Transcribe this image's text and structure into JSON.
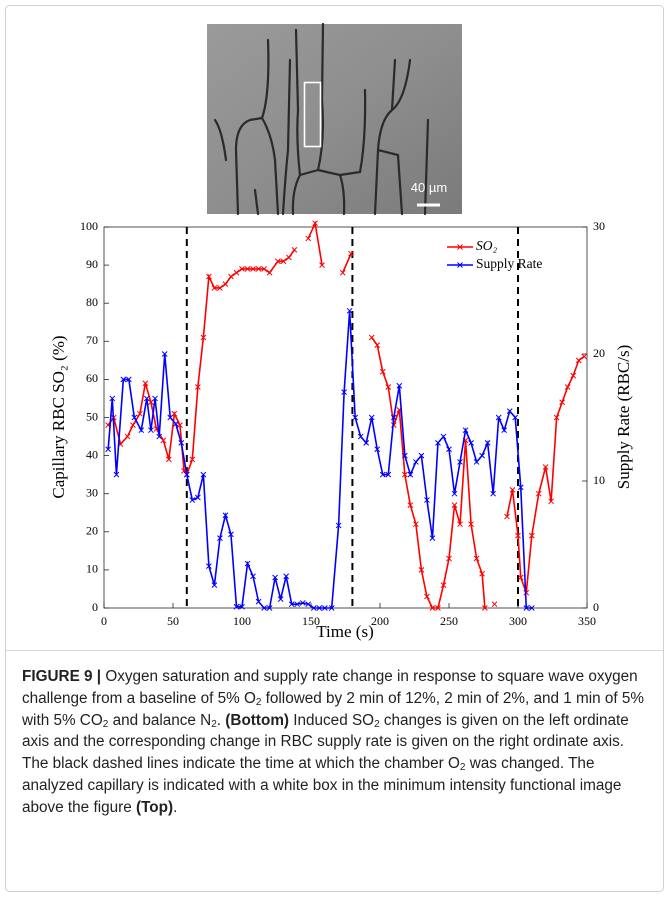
{
  "chart_data": {
    "type": "line",
    "xlabel": "Time (s)",
    "ylabel": "Capillary RBC SO₂ (%)",
    "y2label": "Supply Rate (RBC/s)",
    "xlim": [
      0,
      350
    ],
    "xticks": [
      0,
      50,
      100,
      150,
      200,
      250,
      300,
      350
    ],
    "ylim": [
      0,
      100
    ],
    "yticks": [
      0,
      10,
      20,
      30,
      40,
      50,
      60,
      70,
      80,
      90,
      100
    ],
    "y2lim": [
      0,
      30
    ],
    "y2ticks": [
      0,
      10,
      20,
      30
    ],
    "legend": "upper right",
    "vlines": [
      60,
      180,
      300
    ],
    "series": [
      {
        "name": "SO₂",
        "color": "#ff0000",
        "axis": "y",
        "x": [
          3,
          7,
          12,
          17,
          21,
          26,
          30,
          34,
          38,
          43,
          47,
          51,
          55,
          58,
          60,
          64,
          68,
          72,
          76,
          80,
          84,
          88,
          92,
          96,
          100,
          104,
          108,
          112,
          116,
          120,
          126,
          130,
          134,
          138,
          142,
          148,
          153,
          158,
          163,
          173,
          179,
          188,
          194,
          198,
          202,
          206,
          210,
          214,
          218,
          222,
          226,
          230,
          234,
          238,
          242,
          246,
          250,
          254,
          258,
          262,
          266,
          270,
          274,
          276,
          279,
          283,
          287,
          292,
          296,
          300,
          302,
          306,
          310,
          315,
          320,
          324,
          328,
          332,
          336,
          340,
          344,
          348
        ],
        "values": [
          48,
          50,
          43,
          45,
          48,
          51,
          59,
          54,
          47,
          44,
          39,
          51,
          48,
          36,
          35,
          39,
          58,
          71,
          87,
          84,
          84,
          85,
          87,
          88,
          89,
          89,
          89,
          89,
          89,
          88,
          91,
          91,
          92,
          94,
          null,
          97,
          101,
          90,
          null,
          88,
          93,
          null,
          71,
          69,
          62,
          58,
          48,
          52,
          35,
          27,
          22,
          10,
          3,
          0,
          0,
          6,
          13,
          27,
          22,
          44,
          22,
          13,
          9,
          0,
          null,
          1,
          null,
          24,
          31,
          19,
          8,
          4,
          19,
          30,
          37,
          28,
          50,
          54,
          58,
          61,
          65,
          66
        ]
      },
      {
        "name": "Supply Rate",
        "color": "#0000ff",
        "axis": "y2",
        "x": [
          3,
          6,
          9,
          14,
          18,
          22,
          27,
          31,
          34,
          37,
          40,
          44,
          48,
          52,
          56,
          60,
          64,
          68,
          72,
          76,
          80,
          84,
          88,
          92,
          96,
          100,
          104,
          108,
          112,
          116,
          120,
          124,
          128,
          132,
          136,
          140,
          144,
          148,
          152,
          156,
          160,
          165,
          170,
          174,
          178,
          182,
          186,
          190,
          194,
          198,
          202,
          206,
          210,
          214,
          218,
          222,
          226,
          230,
          234,
          238,
          242,
          246,
          250,
          254,
          258,
          262,
          266,
          270,
          274,
          278,
          282,
          286,
          290,
          294,
          298,
          302,
          306,
          310
        ],
        "values": [
          12.5,
          16.5,
          10.5,
          18,
          18,
          15,
          14,
          16.5,
          14,
          16.5,
          13.5,
          20,
          15,
          14.5,
          13,
          10.5,
          8.5,
          8.7,
          10.5,
          3.3,
          1.8,
          5.5,
          7.3,
          5.8,
          0.1,
          0.1,
          3.5,
          2.5,
          0.5,
          0,
          0,
          2.4,
          0.7,
          2.5,
          0.3,
          0.3,
          0.4,
          0.3,
          0,
          0,
          0,
          0,
          6.5,
          17,
          23.4,
          15,
          13.5,
          13,
          15,
          12.5,
          10.5,
          10.5,
          15,
          17.5,
          12,
          10.5,
          11.5,
          12,
          8.5,
          5.5,
          13,
          13.5,
          12.5,
          9,
          11.5,
          14,
          13,
          11.5,
          12,
          13,
          9,
          15,
          14,
          15.5,
          15,
          9.5,
          0,
          0
        ]
      }
    ]
  },
  "image": {
    "scale_label": "40 µm"
  },
  "caption": [
    "FIGURE 9 |",
    " Oxygen saturation and supply rate change in response to square wave oxygen challenge from a baseline of 5% O",
    "2",
    " followed by 2 min of 12%, 2 min of 2%, and 1 min of 5% with 5% CO",
    "2",
    " and balance N",
    "2",
    ". ",
    "(Bottom)",
    " Induced SO",
    "2",
    " changes is given on the left ordinate axis and the corresponding change in RBC supply rate is given on the right ordinate axis. The black dashed lines indicate the time at which the chamber O",
    "2",
    " was changed. The analyzed capillary is indicated with a white box in the minimum intensity functional image above the figure ",
    "(Top)",
    "."
  ]
}
